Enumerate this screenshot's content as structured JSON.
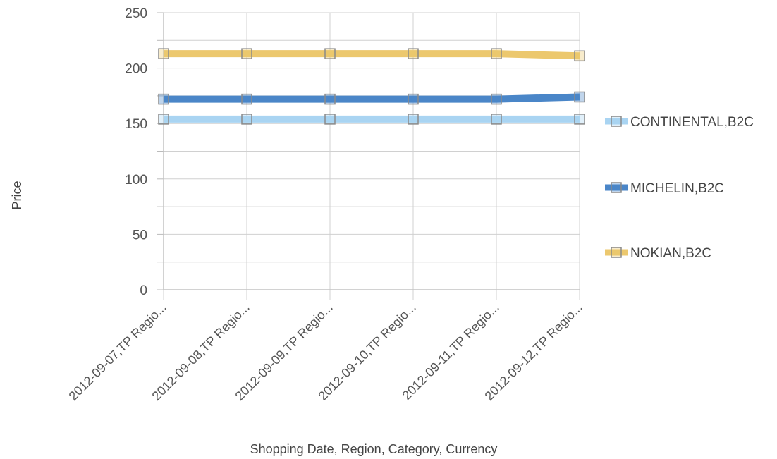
{
  "chart_data": {
    "type": "line",
    "xlabel": "Shopping Date, Region, Category, Currency",
    "ylabel": "Price",
    "ylim": [
      0,
      250
    ],
    "yticks": [
      0,
      50,
      100,
      150,
      200,
      250
    ],
    "categories": [
      "2012-09-07,TP Regio...",
      "2012-09-08,TP Regio...",
      "2012-09-09,TP Regio...",
      "2012-09-10,TP Regio...",
      "2012-09-11,TP Regio...",
      "2012-09-12,TP Regio..."
    ],
    "series": [
      {
        "name": "CONTINENTAL,B2C",
        "color": "#a9d4f2",
        "values": [
          154,
          154,
          154,
          154,
          154,
          154
        ]
      },
      {
        "name": "MICHELIN,B2C",
        "color": "#4a86c8",
        "values": [
          172,
          172,
          172,
          172,
          172,
          174
        ]
      },
      {
        "name": "NOKIAN,B2C",
        "color": "#ecc86e",
        "values": [
          213,
          213,
          213,
          213,
          213,
          211
        ]
      }
    ],
    "grid": true,
    "legend_position": "right"
  }
}
